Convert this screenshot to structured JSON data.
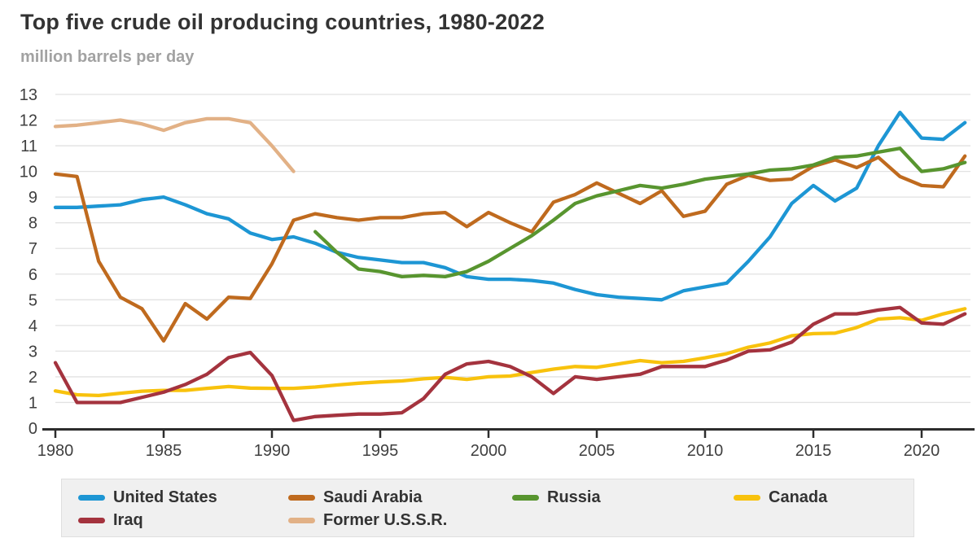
{
  "header": {
    "title": "Top five crude oil producing countries, 1980-2022",
    "subtitle": "million barrels per day"
  },
  "chart_data": {
    "type": "line",
    "title": "Top five crude oil producing countries, 1980-2022",
    "ylabel": "million barrels per day",
    "xlabel": "",
    "x_start": 1980,
    "x_end": 2022,
    "ylim": [
      0,
      13
    ],
    "yticks": [
      0,
      1,
      2,
      3,
      4,
      5,
      6,
      7,
      8,
      9,
      10,
      11,
      12,
      13
    ],
    "xticks": [
      1980,
      1985,
      1990,
      1995,
      2000,
      2005,
      2010,
      2015,
      2020
    ],
    "grid": "horizontal",
    "legend_position": "bottom",
    "series": [
      {
        "name": "United States",
        "color": "#1d96d4",
        "start_year": 1980,
        "end_year": 2022,
        "values": [
          8.6,
          8.6,
          8.65,
          8.7,
          8.9,
          9.0,
          8.7,
          8.35,
          8.15,
          7.6,
          7.35,
          7.45,
          7.2,
          6.85,
          6.65,
          6.55,
          6.45,
          6.45,
          6.25,
          5.9,
          5.8,
          5.8,
          5.75,
          5.65,
          5.4,
          5.2,
          5.1,
          5.05,
          5.0,
          5.35,
          5.5,
          5.65,
          6.5,
          7.45,
          8.75,
          9.45,
          8.85,
          9.35,
          11.0,
          12.3,
          11.3,
          11.25,
          11.9
        ]
      },
      {
        "name": "Saudi Arabia",
        "color": "#bf6a1e",
        "start_year": 1980,
        "end_year": 2022,
        "values": [
          9.9,
          9.8,
          6.5,
          5.1,
          4.65,
          3.4,
          4.85,
          4.25,
          5.1,
          5.05,
          6.4,
          8.1,
          8.35,
          8.2,
          8.1,
          8.2,
          8.2,
          8.35,
          8.4,
          7.85,
          8.4,
          8.0,
          7.65,
          8.8,
          9.1,
          9.55,
          9.15,
          8.75,
          9.25,
          8.25,
          8.45,
          9.5,
          9.85,
          9.65,
          9.7,
          10.2,
          10.45,
          10.15,
          10.55,
          9.8,
          9.45,
          9.4,
          10.6
        ]
      },
      {
        "name": "Russia",
        "color": "#58952f",
        "start_year": 1992,
        "end_year": 2022,
        "values": [
          7.65,
          6.85,
          6.2,
          6.1,
          5.9,
          5.95,
          5.9,
          6.1,
          6.5,
          7.0,
          7.5,
          8.1,
          8.75,
          9.05,
          9.25,
          9.45,
          9.35,
          9.5,
          9.7,
          9.8,
          9.9,
          10.05,
          10.1,
          10.25,
          10.55,
          10.6,
          10.75,
          10.9,
          10.0,
          10.1,
          10.35
        ]
      },
      {
        "name": "Canada",
        "color": "#f8c20d",
        "start_year": 1980,
        "end_year": 2022,
        "values": [
          1.45,
          1.3,
          1.27,
          1.36,
          1.44,
          1.47,
          1.47,
          1.55,
          1.62,
          1.56,
          1.55,
          1.55,
          1.6,
          1.68,
          1.75,
          1.8,
          1.84,
          1.92,
          1.98,
          1.9,
          2.0,
          2.03,
          2.17,
          2.3,
          2.4,
          2.37,
          2.5,
          2.63,
          2.55,
          2.6,
          2.74,
          2.9,
          3.15,
          3.32,
          3.6,
          3.68,
          3.7,
          3.92,
          4.25,
          4.3,
          4.2,
          4.45,
          4.65
        ]
      },
      {
        "name": "Iraq",
        "color": "#a4333e",
        "start_year": 1980,
        "end_year": 2022,
        "values": [
          2.55,
          1.0,
          1.0,
          1.0,
          1.2,
          1.4,
          1.7,
          2.1,
          2.75,
          2.95,
          2.05,
          0.3,
          0.45,
          0.5,
          0.55,
          0.55,
          0.6,
          1.15,
          2.1,
          2.5,
          2.6,
          2.4,
          2.0,
          1.35,
          2.0,
          1.9,
          2.0,
          2.1,
          2.4,
          2.4,
          2.4,
          2.65,
          3.0,
          3.05,
          3.35,
          4.05,
          4.45,
          4.45,
          4.6,
          4.7,
          4.1,
          4.05,
          4.45
        ]
      },
      {
        "name": "Former U.S.S.R.",
        "color": "#e2b186",
        "start_year": 1980,
        "end_year": 1991,
        "values": [
          11.75,
          11.8,
          11.9,
          12.0,
          11.85,
          11.6,
          11.9,
          12.05,
          12.05,
          11.9,
          11.0,
          10.0
        ]
      }
    ]
  }
}
